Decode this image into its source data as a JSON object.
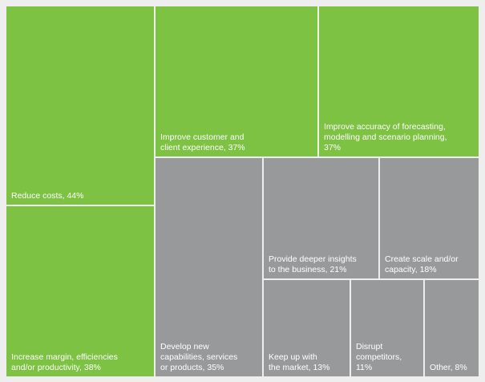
{
  "chart_data": {
    "type": "treemap",
    "title": "",
    "items": [
      {
        "id": "reduce-costs",
        "label": "Reduce costs, 44%",
        "value": 44,
        "group": "green"
      },
      {
        "id": "increase-margin",
        "label": "Increase margin, efficiencies\nand/or productivity, 38%",
        "value": 38,
        "group": "green"
      },
      {
        "id": "improve-customer",
        "label": "Improve customer and\nclient experience, 37%",
        "value": 37,
        "group": "green"
      },
      {
        "id": "improve-forecasting",
        "label": "Improve accuracy of forecasting,\nmodelling and scenario planning,\n37%",
        "value": 37,
        "group": "green"
      },
      {
        "id": "develop-capabilities",
        "label": "Develop new\ncapabilities, services\nor products, 35%",
        "value": 35,
        "group": "gray"
      },
      {
        "id": "deeper-insights",
        "label": "Provide deeper insights\nto the business, 21%",
        "value": 21,
        "group": "gray"
      },
      {
        "id": "create-scale",
        "label": "Create scale and/or\ncapacity, 18%",
        "value": 18,
        "group": "gray"
      },
      {
        "id": "keep-up",
        "label": "Keep up with\nthe market, 13%",
        "value": 13,
        "group": "gray"
      },
      {
        "id": "disrupt",
        "label": "Disrupt\ncompetitors, 11%",
        "value": 11,
        "group": "gray"
      },
      {
        "id": "other",
        "label": "Other, 8%",
        "value": 8,
        "group": "gray"
      }
    ],
    "colors": {
      "green": "#7dc242",
      "gray": "#98999b",
      "background": "#eeeeee"
    }
  }
}
